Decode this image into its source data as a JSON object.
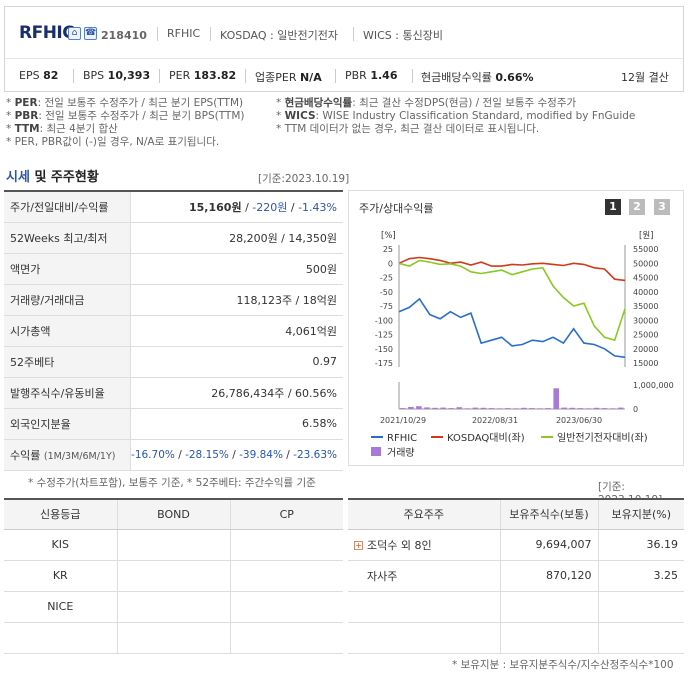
{
  "header": {
    "name": "RFHIC",
    "code": "218410",
    "meta": [
      "RFHIC",
      "KOSDAQ : 일반전기전자",
      "WICS : 통신장비"
    ],
    "stats": [
      {
        "label": "EPS",
        "value": "82"
      },
      {
        "label": "BPS",
        "value": "10,393"
      },
      {
        "label": "PER",
        "value": "183.82"
      },
      {
        "label": "업종PER",
        "value": "N/A"
      },
      {
        "label": "PBR",
        "value": "1.46"
      },
      {
        "label": "현금배당수익률",
        "value": "0.66%"
      }
    ],
    "period": "12월 결산"
  },
  "notes_left": [
    {
      "key": "PER",
      "text": ": 전일 보통주 수정주가 / 최근 분기 EPS(TTM)"
    },
    {
      "key": "PBR",
      "text": ": 전일 보통주 수정주가 / 최근 분기 BPS(TTM)"
    },
    {
      "key": "TTM",
      "text": ": 최근 4분기 합산"
    },
    {
      "key": "",
      "text": "PER, PBR값이 (-)일 경우, N/A로 표기됩니다."
    }
  ],
  "notes_right": [
    {
      "key": "현금배당수익률",
      "text": ": 최근 결산 수정DPS(현금) / 전일 보통주 수정주가"
    },
    {
      "key": "WICS",
      "text": ": WISE Industry Classification Standard, modified by FnGuide"
    },
    {
      "key": "",
      "text": "TTM 데이터가 없는 경우, 최근 결산 데이터로 표시됩니다."
    }
  ],
  "section": {
    "title_a": "시세",
    "title_b": " 및 주주현황",
    "basedate": "[기준:2023.10.19]"
  },
  "info": {
    "rows": [
      {
        "label": "주가/전일대비/수익률"
      },
      {
        "label": "52Weeks 최고/최저",
        "value": "28,200원 / 14,350원"
      },
      {
        "label": "액면가",
        "value": "500원"
      },
      {
        "label": "거래량/거래대금",
        "value": "118,123주 / 18억원"
      },
      {
        "label": "시가총액",
        "value": "4,061억원"
      },
      {
        "label": "52주베타",
        "value": "0.97"
      },
      {
        "label": "발행주식수/유동비율",
        "value": "26,786,434주 / 60.56%"
      },
      {
        "label": "외국인지분율",
        "value": "6.58%"
      },
      {
        "label": "수익률",
        "label_sub": "(1M/3M/6M/1Y)"
      }
    ],
    "price": "15,160원",
    "change": "-220원",
    "change_rate": "-1.43%",
    "returns": [
      "-16.70%",
      "-28.15%",
      "-39.84%",
      "-23.63%"
    ],
    "footnote": "* 수정주가(차트포함), 보통주 기준, * 52주베타: 주간수익률 기준"
  },
  "chart_data": {
    "type": "line",
    "title": "주가/상대수익률",
    "pages": [
      "1",
      "2",
      "3"
    ],
    "left_axis_label": "[%]",
    "right_axis_label": "[원]",
    "left_ticks": [
      "25",
      "0",
      "-25",
      "-50",
      "-75",
      "-100",
      "-125",
      "-150",
      "-175"
    ],
    "right_ticks": [
      "55000",
      "50000",
      "45000",
      "40000",
      "35000",
      "30000",
      "25000",
      "20000",
      "15000"
    ],
    "volume_ticks": [
      "1,000,000",
      "0"
    ],
    "x_ticks": [
      "2021/10/29",
      "2022/08/31",
      "2023/06/30"
    ],
    "legend": [
      {
        "name": "RFHIC",
        "color": "#2a6ed0"
      },
      {
        "name": "KOSDAQ대비(좌)",
        "color": "#d03a1a"
      },
      {
        "name": "일반전기전자대비(좌)",
        "color": "#8cc820"
      },
      {
        "name": "거래량",
        "color": "#a87ad8"
      }
    ],
    "left_range": [
      -175,
      25
    ],
    "right_range": [
      15000,
      55000
    ],
    "volume_range": [
      0,
      1000000
    ],
    "series": [
      {
        "name": "RFHIC",
        "axis": "right",
        "values": [
          33000,
          34500,
          37500,
          32000,
          30500,
          33000,
          31000,
          32500,
          22000,
          23000,
          24000,
          21000,
          21500,
          23000,
          22500,
          24000,
          22000,
          27000,
          22000,
          21500,
          20000,
          17500,
          17000
        ]
      },
      {
        "name": "KOSDAQ대비(좌)",
        "axis": "left",
        "values": [
          0,
          8,
          10,
          8,
          5,
          0,
          2,
          -3,
          2,
          -5,
          -5,
          -2,
          -3,
          -1,
          0,
          -2,
          -4,
          0,
          -2,
          -8,
          -10,
          -28,
          -30
        ]
      },
      {
        "name": "일반전기전자대비(좌)",
        "axis": "left",
        "values": [
          0,
          -5,
          5,
          2,
          -2,
          -1,
          -5,
          -15,
          -18,
          -15,
          -12,
          -20,
          -15,
          -10,
          -8,
          -40,
          -60,
          -75,
          -70,
          -110,
          -130,
          -135,
          -80
        ]
      }
    ],
    "volume": [
      40000,
      90000,
      120000,
      70000,
      50000,
      60000,
      40000,
      80000,
      30000,
      60000,
      50000,
      40000,
      30000,
      40000,
      30000,
      50000,
      40000,
      30000,
      40000,
      900000,
      60000,
      50000,
      40000,
      30000,
      50000,
      40000,
      30000,
      60000
    ]
  },
  "credit": {
    "headers": [
      "신용등급",
      "BOND",
      "CP"
    ],
    "rows": [
      [
        "KIS",
        "",
        ""
      ],
      [
        "KR",
        "",
        ""
      ],
      [
        "NICE",
        "",
        ""
      ],
      [
        "",
        "",
        ""
      ]
    ]
  },
  "holders": {
    "basedate": "[기준: 2023.10.19]",
    "headers": [
      "주요주주",
      "보유주식수(보통)",
      "보유지분(%)"
    ],
    "rows": [
      {
        "name": "조덕수 외 8인",
        "shares": "9,694,007",
        "ratio": "36.19"
      },
      {
        "name": "자사주",
        "shares": "870,120",
        "ratio": "3.25"
      },
      {
        "name": "",
        "shares": "",
        "ratio": ""
      },
      {
        "name": "",
        "shares": "",
        "ratio": ""
      }
    ],
    "footnote": "* 보유지분 : 보유지분주식수/지수산정주식수*100"
  }
}
